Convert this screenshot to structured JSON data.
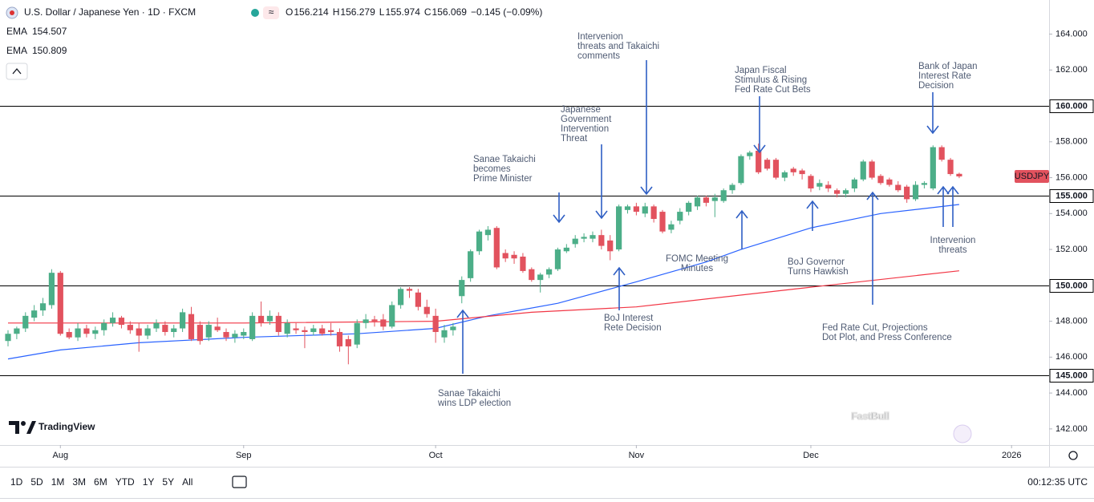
{
  "header": {
    "title": "U.S. Dollar / Japanese Yen · 1D · FXCM",
    "ohlc": [
      {
        "label": "O",
        "value": "156.214"
      },
      {
        "label": "H",
        "value": "156.279"
      },
      {
        "label": "L",
        "value": "155.974"
      },
      {
        "label": "C",
        "value": "156.069"
      }
    ],
    "change": "−0.145 (−0.09%)"
  },
  "chart_data": {
    "type": "candlestick",
    "symbol_tag": "USDJPY",
    "up_color": "#4cae88",
    "down_color": "#e2525e",
    "xlim": [
      -0.92,
      119.3
    ],
    "ylim": [
      141.1,
      165.9
    ],
    "xticks": [
      {
        "value": 6,
        "label": "Aug"
      },
      {
        "value": 27,
        "label": "Sep"
      },
      {
        "value": 49,
        "label": "Oct"
      },
      {
        "value": 72,
        "label": "Nov"
      },
      {
        "value": 92,
        "label": "Dec"
      },
      {
        "value": 115,
        "label": "2026"
      }
    ],
    "yticks": [
      {
        "value": 164,
        "label": "164.000"
      },
      {
        "value": 162,
        "label": "162.000"
      },
      {
        "value": 158,
        "label": "158.000"
      },
      {
        "value": 156,
        "label": "156.000"
      },
      {
        "value": 154,
        "label": "154.000"
      },
      {
        "value": 152,
        "label": "152.000"
      },
      {
        "value": 148,
        "label": "148.000"
      },
      {
        "value": 146,
        "label": "146.000"
      },
      {
        "value": 144,
        "label": "144.000"
      },
      {
        "value": 142,
        "label": "142.000"
      }
    ],
    "levels": [
      {
        "value": 160,
        "label": "160.000"
      },
      {
        "value": 155,
        "label": "155.000"
      },
      {
        "value": 150,
        "label": "150.000"
      },
      {
        "value": 145,
        "label": "145.000"
      }
    ],
    "open": [
      146.9,
      147.3,
      147.6,
      148.2,
      148.6,
      148.9,
      150.7,
      147.4,
      147.1,
      147.6,
      147.3,
      147.5,
      147.9,
      148.2,
      147.8,
      147.6,
      147.2,
      147.6,
      147.8,
      147.4,
      147.6,
      148.4,
      147.8,
      147.1,
      147.7,
      147.4,
      147.1,
      147.2,
      147.0,
      148.3,
      148.0,
      148.3,
      147.3,
      147.6,
      147.5,
      147.4,
      147.6,
      147.5,
      147.4,
      147.0,
      146.7,
      147.9,
      148.1,
      148.1,
      147.7,
      148.9,
      149.8,
      149.6,
      148.8,
      148.3,
      147.1,
      147.5,
      149.4,
      150.4,
      151.9,
      152.8,
      153.2,
      151.8,
      151.7,
      151.6,
      150.9,
      150.3,
      150.6,
      150.9,
      151.9,
      152.3,
      152.6,
      152.6,
      152.8,
      152.5,
      152.0,
      154.2,
      154.4,
      154.0,
      154.4,
      154.1,
      153.1,
      153.6,
      154.1,
      154.4,
      154.9,
      154.7,
      154.7,
      155.3,
      155.7,
      157.2,
      157.5,
      157.0,
      157.0,
      156.0,
      156.5,
      156.4,
      156.1,
      155.5,
      155.6,
      155.3,
      155.1,
      155.4,
      155.9,
      156.9,
      156.1,
      155.9,
      155.6,
      155.5,
      154.8,
      155.6,
      155.4,
      157.7,
      157.0,
      156.214
    ],
    "high": [
      147.5,
      147.7,
      148.5,
      148.9,
      149.3,
      150.9,
      150.8,
      147.6,
      147.9,
      147.8,
      147.7,
      148.1,
      148.5,
      148.3,
      148.0,
      147.9,
      147.8,
      148.1,
      148.0,
      147.8,
      148.7,
      148.8,
      148.0,
      148.0,
      148.2,
      147.6,
      147.5,
      147.6,
      148.5,
      149.1,
      148.6,
      148.5,
      148.1,
      147.9,
      147.7,
      147.8,
      147.8,
      147.9,
      147.6,
      147.2,
      148.1,
      148.4,
      148.3,
      148.4,
      149.1,
      149.9,
      149.9,
      149.8,
      149.2,
      148.7,
      147.8,
      147.9,
      150.5,
      152.0,
      153.1,
      153.3,
      153.3,
      152.0,
      151.9,
      151.8,
      151.0,
      150.7,
      151.0,
      152.1,
      152.3,
      152.8,
      152.9,
      153.0,
      153.1,
      152.8,
      154.5,
      154.5,
      154.6,
      154.6,
      154.5,
      154.2,
      153.6,
      154.3,
      154.7,
      155.0,
      155.0,
      155.1,
      155.4,
      155.7,
      157.3,
      157.5,
      157.9,
      157.1,
      157.1,
      156.4,
      156.6,
      156.5,
      156.2,
      155.9,
      155.8,
      155.4,
      155.4,
      156.0,
      157.0,
      157.0,
      156.2,
      156.0,
      155.8,
      155.6,
      155.8,
      155.8,
      157.8,
      157.8,
      157.1,
      156.279
    ],
    "low": [
      146.6,
      147.0,
      147.4,
      148.0,
      148.3,
      148.7,
      147.2,
      147.0,
      146.9,
      147.1,
      147.0,
      147.2,
      147.7,
      147.6,
      147.3,
      146.3,
      147.0,
      147.4,
      147.2,
      147.1,
      147.4,
      146.9,
      146.7,
      146.9,
      147.4,
      146.9,
      146.8,
      147.0,
      146.9,
      147.7,
      147.8,
      147.2,
      147.1,
      147.3,
      146.5,
      147.2,
      147.2,
      147.2,
      146.3,
      145.6,
      146.5,
      147.6,
      147.7,
      147.5,
      147.6,
      148.7,
      149.3,
      148.6,
      148.2,
      146.8,
      146.8,
      147.2,
      149.0,
      150.2,
      151.7,
      152.5,
      150.9,
      151.3,
      151.2,
      150.7,
      150.2,
      149.6,
      150.4,
      150.8,
      151.8,
      152.1,
      152.4,
      152.4,
      152.0,
      151.4,
      151.9,
      154.0,
      153.9,
      153.8,
      153.5,
      152.9,
      152.9,
      153.4,
      153.9,
      154.2,
      154.4,
      153.8,
      154.6,
      155.1,
      155.6,
      157.0,
      156.2,
      156.4,
      155.9,
      155.8,
      156.1,
      155.9,
      155.2,
      155.3,
      155.2,
      154.9,
      154.9,
      155.2,
      155.8,
      155.9,
      155.6,
      155.5,
      155.2,
      154.6,
      154.7,
      155.4,
      155.3,
      156.9,
      156.1,
      155.974
    ],
    "close": [
      147.3,
      147.6,
      148.3,
      148.6,
      149.0,
      150.7,
      147.3,
      147.1,
      147.6,
      147.3,
      147.5,
      147.9,
      148.2,
      147.8,
      147.5,
      147.2,
      147.6,
      147.9,
      147.4,
      147.6,
      148.5,
      147.0,
      146.9,
      147.8,
      147.5,
      147.1,
      147.3,
      147.4,
      148.3,
      147.9,
      148.3,
      147.4,
      147.9,
      147.5,
      147.4,
      147.6,
      147.3,
      147.4,
      146.6,
      146.6,
      147.9,
      148.1,
      148.0,
      147.7,
      148.9,
      149.8,
      149.7,
      148.8,
      148.4,
      147.4,
      147.5,
      147.7,
      150.3,
      151.9,
      153.0,
      153.1,
      151.0,
      151.5,
      151.5,
      150.8,
      150.3,
      150.6,
      150.9,
      152.0,
      152.1,
      152.6,
      152.7,
      152.8,
      152.2,
      151.9,
      154.4,
      154.4,
      154.1,
      154.4,
      153.7,
      153.0,
      153.4,
      154.1,
      154.6,
      154.9,
      154.6,
      154.9,
      155.3,
      155.6,
      157.2,
      157.4,
      156.3,
      156.5,
      156.0,
      156.3,
      156.3,
      156.2,
      155.4,
      155.7,
      155.4,
      155.1,
      155.3,
      155.9,
      156.9,
      156.0,
      155.7,
      155.6,
      155.3,
      154.8,
      155.6,
      155.7,
      157.7,
      157.0,
      156.2,
      156.069
    ],
    "series": [
      {
        "name": "EMA",
        "legend_value": "154.507",
        "color": "#2962ff",
        "x": [
          0,
          6,
          15,
          27,
          40,
          49,
          55,
          63,
          72,
          80,
          84,
          92,
          100,
          109
        ],
        "values": [
          145.9,
          146.4,
          146.8,
          147.1,
          147.3,
          147.6,
          148.3,
          149.0,
          150.2,
          151.3,
          152.0,
          153.2,
          154.0,
          154.507
        ]
      },
      {
        "name": "EMA",
        "legend_value": "150.809",
        "color": "#f23645",
        "x": [
          0,
          27,
          49,
          60,
          72,
          92,
          109
        ],
        "values": [
          147.9,
          147.9,
          148.0,
          148.5,
          148.8,
          149.9,
          150.809
        ]
      }
    ],
    "annotations": [
      [
        "Sanae Takaichi",
        "becomes",
        "Prime Minister"
      ],
      [
        "Japanese",
        "Government",
        "Intervention",
        "Threat"
      ],
      [
        "Intervenion",
        "threats and Takaichi",
        "comments"
      ],
      [
        "Japan Fiscal",
        "Stimulus & Rising",
        "Fed Rate Cut Bets"
      ],
      [
        "Bank of Japan",
        "Interest Rate",
        "Decision"
      ],
      [
        "Sanae Takaichi",
        "wins LDP election"
      ],
      [
        "BoJ Interest",
        "Rete Decision"
      ],
      [
        "FOMC Meeting",
        "Minutes"
      ],
      [
        "BoJ Governor",
        "Turns Hawkish"
      ],
      [
        "Fed Rate Cut, Projections",
        "Dot Plot, and Press Conference"
      ],
      [
        "Intervenion",
        "threats"
      ]
    ]
  },
  "logo": "TradingView",
  "watermark": "FastBull",
  "toolbar": {
    "timeframes": [
      "1D",
      "5D",
      "1M",
      "3M",
      "6M",
      "YTD",
      "1Y",
      "5Y",
      "All"
    ],
    "clock": "00:12:35 UTC"
  }
}
